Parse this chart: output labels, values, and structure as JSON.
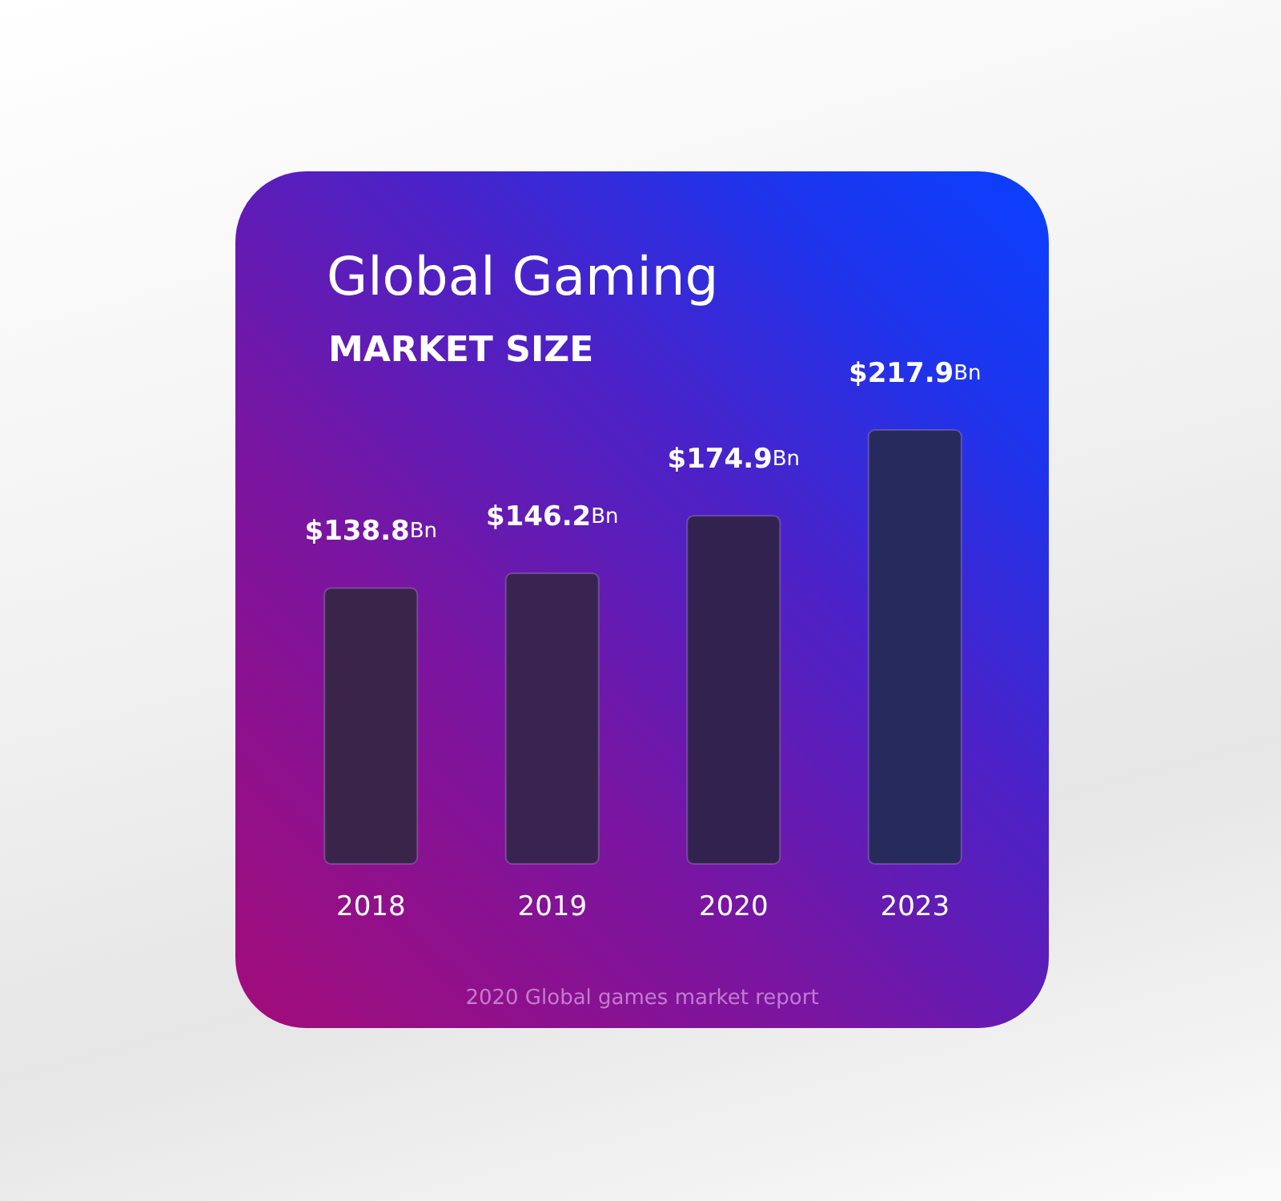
{
  "chart_data": {
    "type": "bar",
    "title": "Global Gaming",
    "subtitle": "MARKET SIZE",
    "categories": [
      "2018",
      "2019",
      "2020",
      "2023"
    ],
    "values": [
      138.8,
      146.2,
      174.9,
      217.9
    ],
    "value_labels": [
      "$138.8Bn",
      "$146.2Bn",
      "$174.9Bn",
      "$217.9Bn"
    ],
    "colors": [
      "#3b2449",
      "#392350",
      "#32224f",
      "#262a5c"
    ],
    "annotations": [
      "2020 Global games market report"
    ]
  }
}
